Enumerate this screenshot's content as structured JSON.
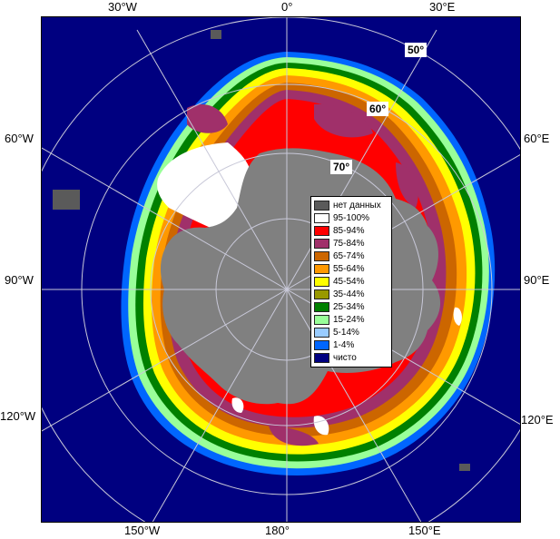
{
  "longitude_labels": {
    "top": [
      "30°W",
      "0°",
      "30°E"
    ],
    "left": [
      "60°W",
      "90°W",
      "120°W"
    ],
    "right": [
      "60°E",
      "90°E",
      "120°E"
    ],
    "bottom": [
      "150°W",
      "180°",
      "150°E"
    ]
  },
  "latitude_labels": [
    "50°",
    "60°",
    "70°"
  ],
  "legend": {
    "items": [
      {
        "label": "нет данных",
        "color": "#5a5a5a"
      },
      {
        "label": "95-100%",
        "color": "#ffffff"
      },
      {
        "label": "85-94%",
        "color": "#ff0000"
      },
      {
        "label": "75-84%",
        "color": "#a0306a"
      },
      {
        "label": "65-74%",
        "color": "#cc6600"
      },
      {
        "label": "55-64%",
        "color": "#ff9900"
      },
      {
        "label": "45-54%",
        "color": "#ffff00"
      },
      {
        "label": "35-44%",
        "color": "#999900"
      },
      {
        "label": "25-34%",
        "color": "#008000"
      },
      {
        "label": "15-24%",
        "color": "#99ff99"
      },
      {
        "label": "5-14%",
        "color": "#99ccff"
      },
      {
        "label": "1-4%",
        "color": "#0066ff"
      },
      {
        "label": "чисто",
        "color": "#000080"
      }
    ]
  },
  "colors": {
    "ocean": "#000080",
    "land": "#808080",
    "grid": "#b0b0c8"
  }
}
